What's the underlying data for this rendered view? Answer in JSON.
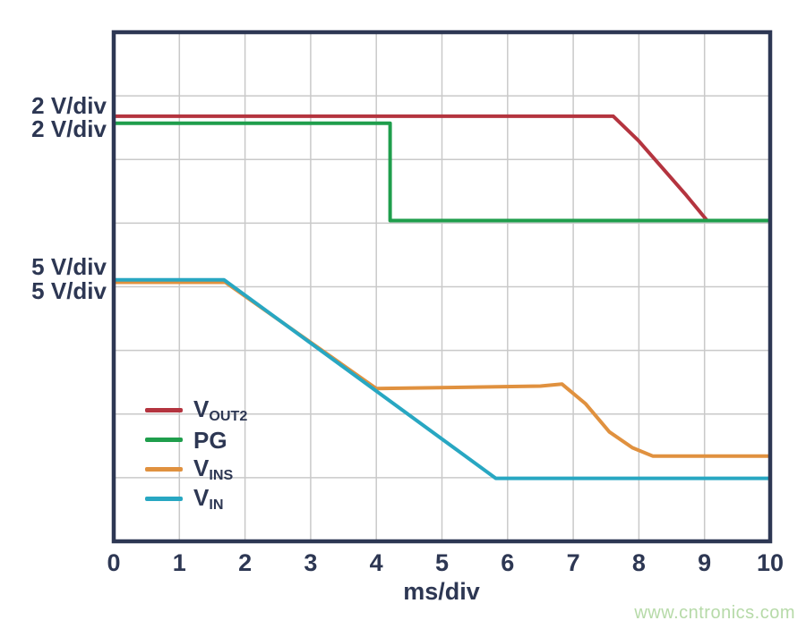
{
  "watermark": "www.cntronics.com",
  "left_labels": [
    "2 V/div",
    "2 V/div",
    "5 V/div",
    "5 V/div"
  ],
  "chart_data": {
    "type": "line",
    "title": "",
    "xlabel": "ms/div",
    "ylabel": "",
    "x_ticks": [
      "0",
      "1",
      "2",
      "3",
      "4",
      "5",
      "6",
      "7",
      "8",
      "9",
      "10"
    ],
    "x_range": [
      0,
      10
    ],
    "y_divisions": 8,
    "grid": true,
    "legend_position": "lower-left",
    "colors": {
      "axis": "#2d3753",
      "grid": "#c9c9c9",
      "text": "#2d3753"
    },
    "series": [
      {
        "name": "V_OUT2",
        "legend_main": "V",
        "legend_sub": "OUT2",
        "scale": "2 V/div",
        "color": "#b4343f",
        "z": 1,
        "points": [
          [
            0,
            1.32
          ],
          [
            7.61,
            1.32
          ],
          [
            7.99,
            1.7
          ],
          [
            8.72,
            2.56
          ],
          [
            9.04,
            2.96
          ],
          [
            10,
            2.96
          ]
        ]
      },
      {
        "name": "PG",
        "legend_main": "PG",
        "legend_sub": "",
        "scale": "2 V/div",
        "color": "#1f9e4c",
        "z": 4,
        "points": [
          [
            0,
            1.43
          ],
          [
            4.21,
            1.43
          ],
          [
            4.21,
            2.96
          ],
          [
            10,
            2.96
          ]
        ]
      },
      {
        "name": "V_INS",
        "legend_main": "V",
        "legend_sub": "INS",
        "scale": "5 V/div",
        "color": "#e0913f",
        "z": 2,
        "points": [
          [
            0,
            3.93
          ],
          [
            1.7,
            3.93
          ],
          [
            4.0,
            5.6
          ],
          [
            6.5,
            5.56
          ],
          [
            6.83,
            5.53
          ],
          [
            7.19,
            5.84
          ],
          [
            7.55,
            6.28
          ],
          [
            7.9,
            6.53
          ],
          [
            8.21,
            6.66
          ],
          [
            10,
            6.66
          ]
        ]
      },
      {
        "name": "V_IN",
        "legend_main": "V",
        "legend_sub": "IN",
        "scale": "5 V/div",
        "color": "#28a7c2",
        "z": 3,
        "points": [
          [
            0,
            3.89
          ],
          [
            1.68,
            3.89
          ],
          [
            5.82,
            7.01
          ],
          [
            10,
            7.01
          ]
        ]
      }
    ]
  }
}
